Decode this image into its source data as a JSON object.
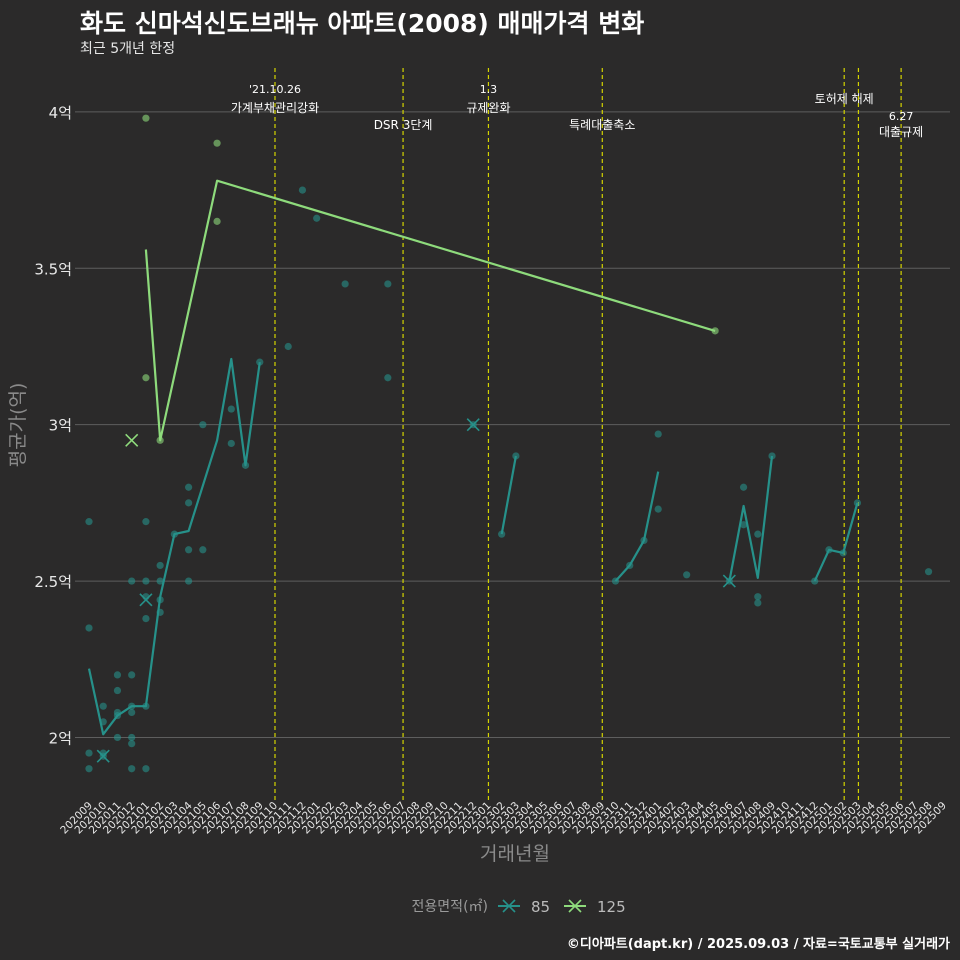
{
  "header": {
    "title": "화도 신마석신도브래뉴 아파트(2008) 매매가격 변화",
    "subtitle": "최근 5개년 한정"
  },
  "caption": "©디아파트(dapt.kr) / 2025.09.03 / 자료=국토교통부 실거래가",
  "colors": {
    "background": "#2b2a2a",
    "grid": "#5e5e5e",
    "vline": "#d4d400",
    "area85": "#26918a",
    "area125": "#8edb7c",
    "text": "#e8e8e8",
    "axis_title": "#8a8a8a"
  },
  "chart_data": {
    "type": "line",
    "title": "화도 신마석신도브래뉴 아파트(2008) 매매가격 변화",
    "xlabel": "거래년월",
    "ylabel": "평균가(억)",
    "ylim": [
      1.8,
      4.15
    ],
    "y_ticks": [
      {
        "value": 2.0,
        "label": "2억"
      },
      {
        "value": 2.5,
        "label": "2.5억"
      },
      {
        "value": 3.0,
        "label": "3억"
      },
      {
        "value": 3.5,
        "label": "3.5억"
      },
      {
        "value": 4.0,
        "label": "4억"
      }
    ],
    "x_categories": [
      "202009",
      "202010",
      "202011",
      "202012",
      "202101",
      "202102",
      "202103",
      "202104",
      "202105",
      "202106",
      "202107",
      "202108",
      "202109",
      "202110",
      "202111",
      "202112",
      "202201",
      "202202",
      "202203",
      "202204",
      "202205",
      "202206",
      "202207",
      "202208",
      "202209",
      "202210",
      "202211",
      "202212",
      "202301",
      "202302",
      "202303",
      "202304",
      "202305",
      "202306",
      "202307",
      "202308",
      "202309",
      "202310",
      "202311",
      "202312",
      "202401",
      "202402",
      "202403",
      "202404",
      "202405",
      "202406",
      "202407",
      "202408",
      "202409",
      "202410",
      "202411",
      "202412",
      "202501",
      "202502",
      "202503",
      "202504",
      "202505",
      "202506",
      "202507",
      "202508",
      "202509"
    ],
    "legend": {
      "title": "전용면적(㎡)",
      "position": "bottom"
    },
    "series": [
      {
        "name": "85",
        "color": "#26918a",
        "lines": [
          [
            [
              0,
              2.22
            ],
            [
              1,
              2.01
            ],
            [
              2,
              2.07
            ],
            [
              3,
              2.1
            ],
            [
              4,
              2.1
            ],
            [
              5,
              2.45
            ],
            [
              6,
              2.65
            ],
            [
              7,
              2.66
            ],
            [
              9,
              2.95
            ],
            [
              10,
              3.21
            ],
            [
              11,
              2.87
            ],
            [
              12,
              3.2
            ]
          ],
          [
            [
              29,
              2.65
            ],
            [
              30,
              2.9
            ]
          ],
          [
            [
              37,
              2.5
            ],
            [
              38,
              2.55
            ],
            [
              39,
              2.63
            ],
            [
              40,
              2.85
            ]
          ],
          [
            [
              45,
              2.5
            ],
            [
              46,
              2.74
            ],
            [
              47,
              2.51
            ],
            [
              48,
              2.9
            ]
          ],
          [
            [
              51,
              2.5
            ],
            [
              52,
              2.6
            ],
            [
              53,
              2.59
            ],
            [
              54,
              2.75
            ]
          ]
        ],
        "points": [
          [
            0,
            2.69
          ],
          [
            0,
            2.35
          ],
          [
            0,
            1.95
          ],
          [
            0,
            1.9
          ],
          [
            1,
            2.1
          ],
          [
            1,
            2.05
          ],
          [
            1,
            1.95
          ],
          [
            1,
            1.94
          ],
          [
            2,
            2.2
          ],
          [
            2,
            2.15
          ],
          [
            2,
            2.08
          ],
          [
            2,
            2.07
          ],
          [
            2,
            2.0
          ],
          [
            3,
            2.5
          ],
          [
            3,
            2.2
          ],
          [
            3,
            2.1
          ],
          [
            3,
            2.08
          ],
          [
            3,
            2.0
          ],
          [
            3,
            1.98
          ],
          [
            3,
            1.9
          ],
          [
            4,
            2.69
          ],
          [
            4,
            2.5
          ],
          [
            4,
            2.45
          ],
          [
            4,
            2.38
          ],
          [
            4,
            2.1
          ],
          [
            4,
            1.9
          ],
          [
            5,
            2.55
          ],
          [
            5,
            2.5
          ],
          [
            5,
            2.44
          ],
          [
            5,
            2.4
          ],
          [
            6,
            2.65
          ],
          [
            7,
            2.8
          ],
          [
            7,
            2.75
          ],
          [
            7,
            2.6
          ],
          [
            7,
            2.5
          ],
          [
            8,
            3.0
          ],
          [
            8,
            2.6
          ],
          [
            10,
            3.05
          ],
          [
            10,
            2.94
          ],
          [
            11,
            2.87
          ],
          [
            12,
            3.2
          ],
          [
            14,
            3.25
          ],
          [
            15,
            3.75
          ],
          [
            16,
            3.66
          ],
          [
            18,
            3.45
          ],
          [
            21,
            3.45
          ],
          [
            21,
            3.15
          ],
          [
            27,
            3.0
          ],
          [
            29,
            2.65
          ],
          [
            30,
            2.9
          ],
          [
            37,
            2.5
          ],
          [
            38,
            2.55
          ],
          [
            39,
            2.63
          ],
          [
            40,
            2.97
          ],
          [
            40,
            2.73
          ],
          [
            42,
            2.52
          ],
          [
            45,
            2.5
          ],
          [
            46,
            2.8
          ],
          [
            46,
            2.68
          ],
          [
            47,
            2.65
          ],
          [
            47,
            2.45
          ],
          [
            47,
            2.43
          ],
          [
            48,
            2.9
          ],
          [
            51,
            2.5
          ],
          [
            52,
            2.6
          ],
          [
            53,
            2.59
          ],
          [
            54,
            2.75
          ],
          [
            59,
            2.53
          ]
        ],
        "crosses": [
          [
            1,
            1.94
          ],
          [
            4,
            2.44
          ],
          [
            27,
            3.0
          ],
          [
            45,
            2.5
          ]
        ]
      },
      {
        "name": "125",
        "color": "#8edb7c",
        "lines": [
          [
            [
              4,
              3.56
            ],
            [
              5,
              2.95
            ],
            [
              9,
              3.78
            ],
            [
              44,
              3.3
            ]
          ]
        ],
        "points": [
          [
            4,
            3.98
          ],
          [
            4,
            3.15
          ],
          [
            5,
            2.95
          ],
          [
            9,
            3.9
          ],
          [
            9,
            3.65
          ],
          [
            44,
            3.3
          ]
        ],
        "crosses": [
          [
            3,
            2.95
          ]
        ]
      }
    ],
    "events": [
      {
        "x": 13,
        "date": "'21.10.26",
        "label": "가계부채관리강화"
      },
      {
        "x": 22,
        "date": "",
        "label": "DSR 3단계"
      },
      {
        "x": 28,
        "date": "1.3",
        "label": "규제완화"
      },
      {
        "x": 36,
        "date": "",
        "label": "특례대출축소"
      },
      {
        "x": 53,
        "date": "",
        "label": "토허제 해제"
      },
      {
        "x": 54,
        "date": "",
        "label": ""
      },
      {
        "x": 57,
        "date": "6.27",
        "label": "대출규제"
      }
    ]
  }
}
